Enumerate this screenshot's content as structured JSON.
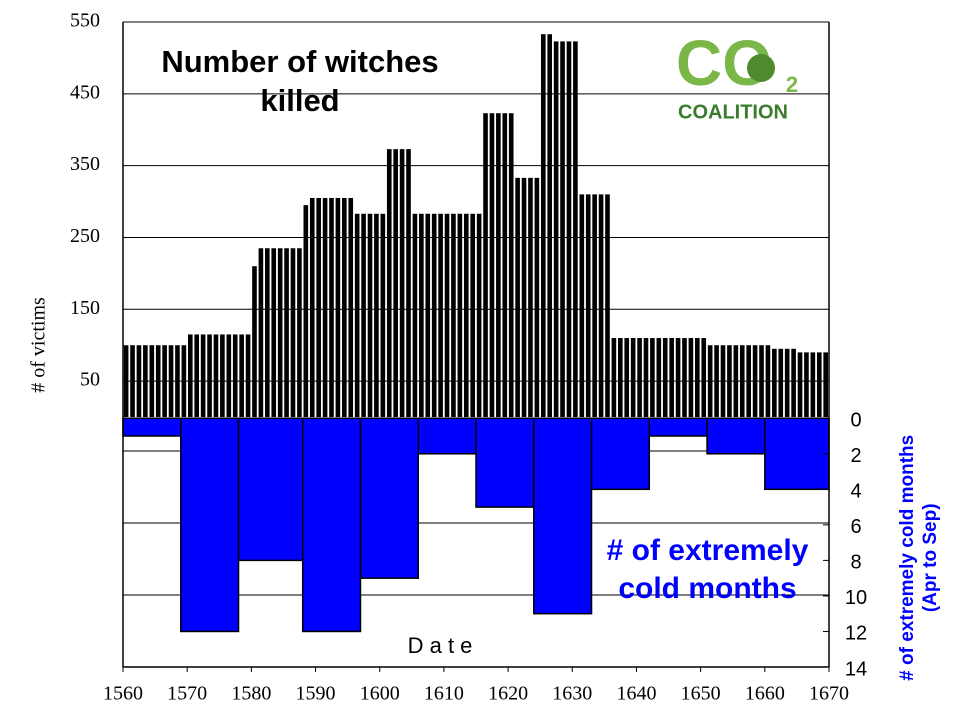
{
  "chart_data": [
    {
      "type": "bar",
      "title": "Number of witches killed",
      "ylabel": "# of victims",
      "xlabel": "D a t e",
      "color": "#000000",
      "x": [
        1560,
        1561,
        1562,
        1563,
        1564,
        1565,
        1566,
        1567,
        1568,
        1569,
        1570,
        1571,
        1572,
        1573,
        1574,
        1575,
        1576,
        1577,
        1578,
        1579,
        1580,
        1581,
        1582,
        1583,
        1584,
        1585,
        1586,
        1587,
        1588,
        1589,
        1590,
        1591,
        1592,
        1593,
        1594,
        1595,
        1596,
        1597,
        1598,
        1599,
        1600,
        1601,
        1602,
        1603,
        1604,
        1605,
        1606,
        1607,
        1608,
        1609,
        1610,
        1611,
        1612,
        1613,
        1614,
        1615,
        1616,
        1617,
        1618,
        1619,
        1620,
        1621,
        1622,
        1623,
        1624,
        1625,
        1626,
        1627,
        1628,
        1629,
        1630,
        1631,
        1632,
        1633,
        1634,
        1635,
        1636,
        1637,
        1638,
        1639,
        1640,
        1641,
        1642,
        1643,
        1644,
        1645,
        1646,
        1647,
        1648,
        1649,
        1650,
        1651,
        1652,
        1653,
        1654,
        1655,
        1656,
        1657,
        1658,
        1659,
        1660,
        1661,
        1662,
        1663,
        1664,
        1665,
        1666,
        1667,
        1668,
        1669
      ],
      "values": [
        100,
        100,
        100,
        100,
        100,
        100,
        100,
        100,
        100,
        100,
        115,
        115,
        115,
        115,
        115,
        115,
        115,
        115,
        115,
        115,
        210,
        235,
        235,
        235,
        235,
        235,
        235,
        235,
        295,
        305,
        305,
        305,
        305,
        305,
        305,
        305,
        283,
        283,
        283,
        283,
        283,
        373,
        373,
        373,
        373,
        283,
        283,
        283,
        283,
        283,
        283,
        283,
        283,
        283,
        283,
        283,
        423,
        423,
        423,
        423,
        423,
        333,
        333,
        333,
        333,
        533,
        533,
        523,
        523,
        523,
        523,
        310,
        310,
        310,
        310,
        310,
        110,
        110,
        110,
        110,
        110,
        110,
        110,
        110,
        110,
        110,
        110,
        110,
        110,
        110,
        110,
        100,
        100,
        100,
        100,
        100,
        100,
        100,
        100,
        100,
        100,
        95,
        95,
        95,
        95,
        90,
        90,
        90,
        90,
        90
      ],
      "xlim": [
        1560,
        1670
      ],
      "xticks": [
        1560,
        1570,
        1580,
        1590,
        1600,
        1610,
        1620,
        1630,
        1640,
        1650,
        1660,
        1670
      ],
      "ylim": [
        -348,
        550
      ],
      "yticks": [
        50,
        150,
        250,
        350,
        450,
        550
      ],
      "grid": true
    },
    {
      "type": "histogram",
      "title": "# of extremely cold months",
      "ylabel": "# of extremely cold months (Apr to Sep)",
      "color": "#0000ff",
      "bins": [
        1560,
        1569,
        1578,
        1588,
        1597,
        1606,
        1615,
        1624,
        1633,
        1642,
        1651,
        1660,
        1670
      ],
      "values": [
        1,
        12,
        8,
        12,
        9,
        2,
        5,
        11,
        4,
        1,
        2,
        4
      ],
      "ylim": [
        -22.3,
        14
      ],
      "inverted": true,
      "yticks": [
        0,
        2,
        4,
        6,
        8,
        10,
        12,
        14
      ]
    }
  ],
  "logo": {
    "text": "CO",
    "subscript": "2",
    "name": "COALITION"
  }
}
